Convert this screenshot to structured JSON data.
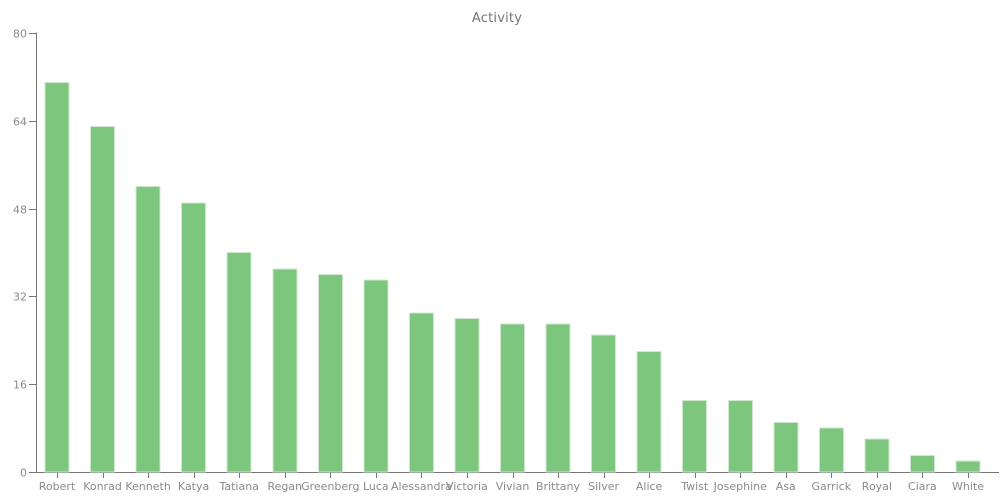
{
  "chart_data": {
    "type": "bar",
    "title": "Activity",
    "xlabel": "",
    "ylabel": "",
    "categories": [
      "Robert",
      "Konrad",
      "Kenneth",
      "Katya",
      "Tatiana",
      "Regan",
      "Greenberg",
      "Luca",
      "Alessandra",
      "Victoria",
      "Vivian",
      "Brittany",
      "Silver",
      "Alice",
      "Twist",
      "Josephine",
      "Asa",
      "Garrick",
      "Royal",
      "Ciara",
      "White"
    ],
    "values": [
      71,
      63,
      52,
      49,
      40,
      37,
      36,
      35,
      29,
      28,
      27,
      27,
      25,
      22,
      13,
      13,
      9,
      8,
      6,
      3,
      2
    ],
    "ylim": [
      0,
      80
    ],
    "y_ticks": [
      0,
      16,
      32,
      48,
      64,
      80
    ],
    "grid": "off",
    "legend": "none",
    "colors": {
      "bar_fill": "#7cc77d",
      "bar_edge": "#cfe8cf",
      "axis": "#757575",
      "tick_label": "#8a8a8a",
      "title": "#757575",
      "background": "#ffffff"
    }
  }
}
